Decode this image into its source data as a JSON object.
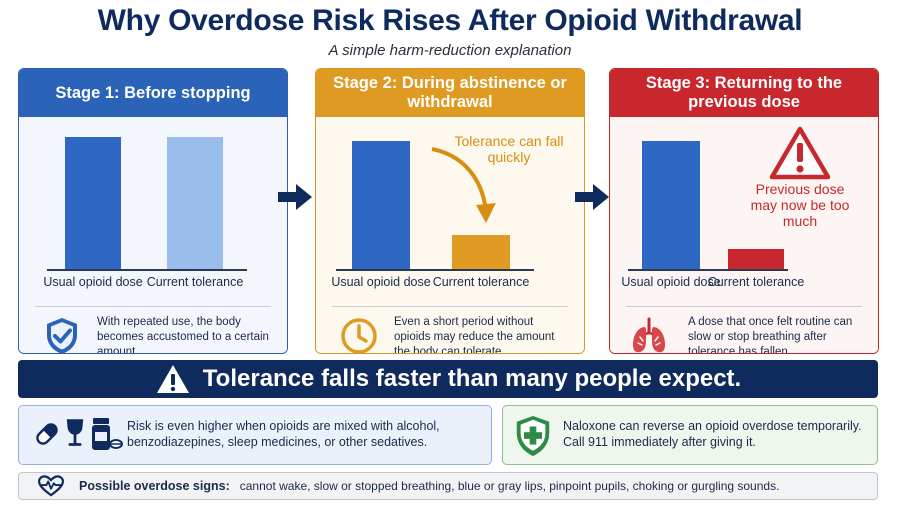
{
  "title": "Why Overdose Risk Rises After Opioid Withdrawal",
  "subtitle": "A simple harm-reduction explanation",
  "stages": [
    {
      "header": "Stage 1:  Before stopping",
      "color": "#2a63b8",
      "bars": [
        {
          "label": "Usual opioid dose",
          "level": 1.0,
          "color": "#2f67c4"
        },
        {
          "label": "Current tolerance",
          "level": 1.0,
          "color": "#9bbdec"
        }
      ],
      "callout": "",
      "description": "With repeated use, the body becomes accustomed to a certain amount.",
      "icon": "shield-check-icon"
    },
    {
      "header": "Stage 2: During abstinence or withdrawal",
      "color": "#df9a21",
      "bars": [
        {
          "label": "Usual opioid dose",
          "level": 0.97,
          "color": "#2f67c4"
        },
        {
          "label": "Current tolerance",
          "level": 0.26,
          "color": "#e19a22"
        }
      ],
      "callout": "Tolerance can fall quickly",
      "description": "Even a short period without opioids may reduce the amount the body can tolerate.",
      "icon": "clock-icon"
    },
    {
      "header": "Stage 3: Returning to the previous dose",
      "color": "#c8282d",
      "bars": [
        {
          "label": "Usual opioid dose",
          "level": 0.97,
          "color": "#2f67c4"
        },
        {
          "label": "Current tolerance",
          "level": 0.15,
          "color": "#c8282d"
        }
      ],
      "callout": "Previous dose may now be too much",
      "description": "A dose that once felt routine can slow or stop breathing after tolerance has fallen.",
      "icon": "lungs-icon"
    }
  ],
  "banner": "Tolerance falls faster than many people expect.",
  "mixing_warning": "Risk is even higher when opioids are mixed with alcohol, benzodiazepines, sleep medicines, or other sedatives.",
  "naloxone_note": "Naloxone can reverse an opioid overdose temporarily. Call 911 immediately after giving it.",
  "signs_label": "Possible overdose signs:",
  "signs_text": "cannot wake, slow or stopped breathing, blue or gray lips, pinpoint pupils, choking or gurgling sounds."
}
